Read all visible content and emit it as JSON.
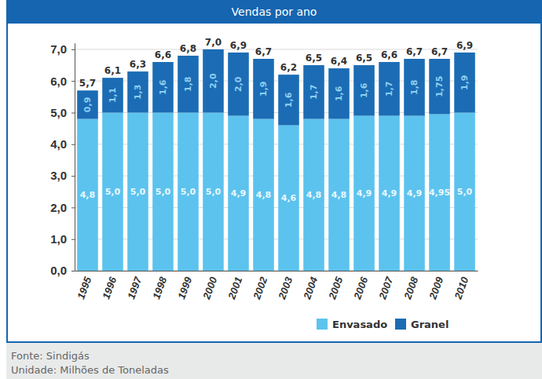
{
  "chart_data": {
    "type": "bar",
    "title": "Vendas por ano",
    "stacked": true,
    "data_labels": true,
    "grid": true,
    "legend": "lower right",
    "categories": [
      "1995",
      "1996",
      "1997",
      "1998",
      "1999",
      "2000",
      "2001",
      "2002",
      "2003",
      "2004",
      "2005",
      "2006",
      "2007",
      "2008",
      "2009",
      "2010"
    ],
    "series": [
      {
        "name": "Envasado",
        "color": "#5cc3ee",
        "values": [
          4.8,
          5.0,
          5.0,
          5.0,
          5.0,
          5.0,
          4.9,
          4.8,
          4.6,
          4.8,
          4.8,
          4.9,
          4.9,
          4.9,
          4.95,
          5.0
        ],
        "value_labels": [
          "4,8",
          "5,0",
          "5,0",
          "5,0",
          "5,0",
          "5,0",
          "4,9",
          "4,8",
          "4,6",
          "4,8",
          "4,8",
          "4,9",
          "4,9",
          "4,9",
          "4,95",
          "5,0"
        ]
      },
      {
        "name": "Granel",
        "color": "#1b6cb4",
        "values": [
          0.9,
          1.1,
          1.3,
          1.6,
          1.8,
          2.0,
          2.0,
          1.9,
          1.6,
          1.7,
          1.6,
          1.6,
          1.7,
          1.8,
          1.75,
          1.9
        ],
        "value_labels": [
          "0,9",
          "1,1",
          "1,3",
          "1,6",
          "1,8",
          "2,0",
          "2,0",
          "1,9",
          "1,6",
          "1,7",
          "1,6",
          "1,6",
          "1,7",
          "1,8",
          "1,75",
          "1,9"
        ]
      }
    ],
    "totals": [
      5.7,
      6.1,
      6.3,
      6.6,
      6.8,
      7.0,
      6.9,
      6.7,
      6.2,
      6.5,
      6.4,
      6.5,
      6.6,
      6.7,
      6.7,
      6.9
    ],
    "total_labels": [
      "5,7",
      "6,1",
      "6,3",
      "6,6",
      "6,8",
      "7,0",
      "6,9",
      "6,7",
      "6,2",
      "6,5",
      "6,4",
      "6,5",
      "6,6",
      "6,7",
      "6,7",
      "6,9"
    ],
    "ylim": [
      0,
      7.2
    ],
    "yticks": [
      {
        "value": 0,
        "label": "0,0"
      },
      {
        "value": 1,
        "label": "1,0"
      },
      {
        "value": 2,
        "label": "2,0"
      },
      {
        "value": 3,
        "label": "3,0"
      },
      {
        "value": 4,
        "label": "4,0"
      },
      {
        "value": 5,
        "label": "5,0"
      },
      {
        "value": 6,
        "label": "6,0"
      },
      {
        "value": 7,
        "label": "7,0"
      }
    ],
    "footer": [
      "Fonte: Sindigás",
      "Unidade: Milhões de Toneladas"
    ]
  }
}
